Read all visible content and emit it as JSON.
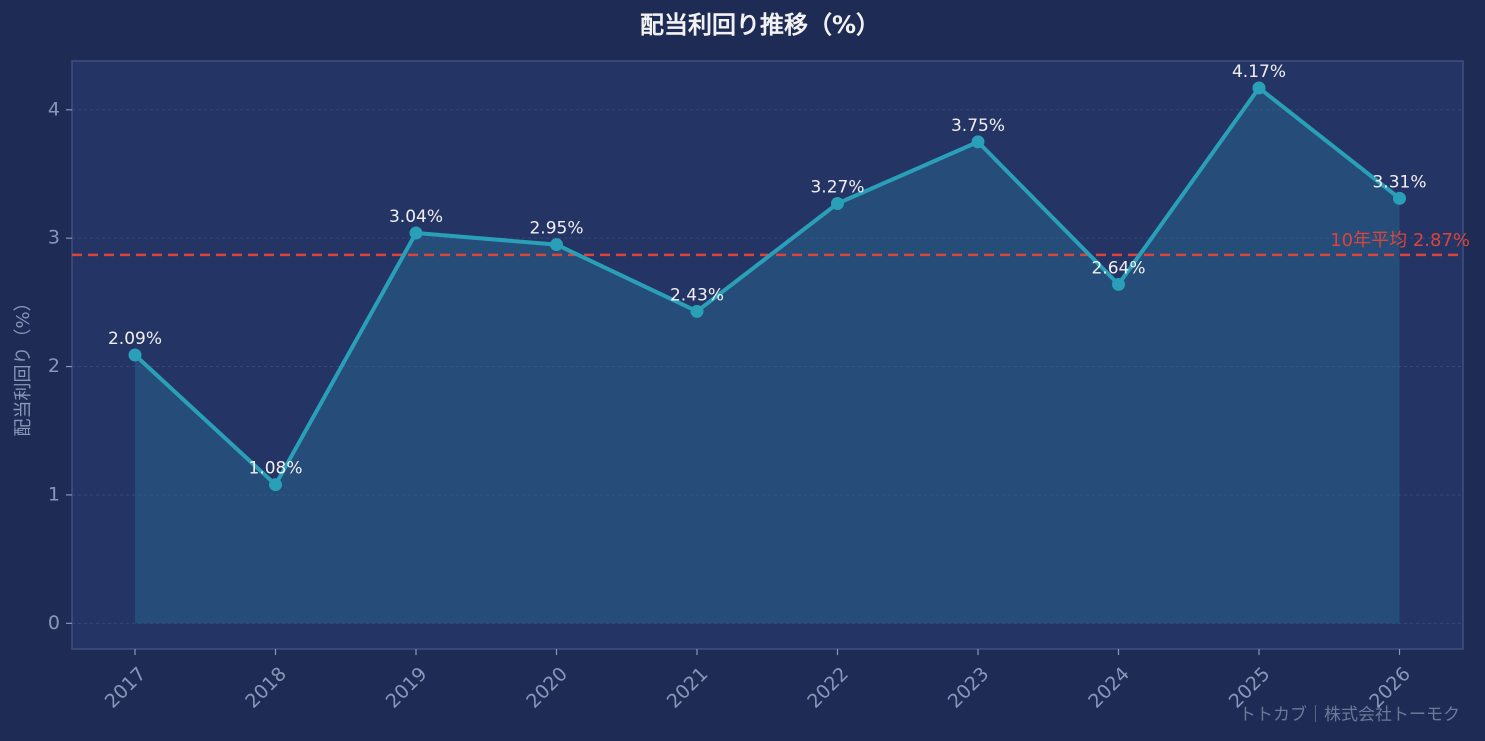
{
  "chart_data": {
    "type": "line",
    "title": "配当利回り推移（%）",
    "y_label": "配当利回り（%）",
    "categories": [
      "2017",
      "2018",
      "2019",
      "2020",
      "2021",
      "2022",
      "2023",
      "2024",
      "2025",
      "2026"
    ],
    "values": [
      2.09,
      1.08,
      3.04,
      2.95,
      2.43,
      3.27,
      3.75,
      2.64,
      4.17,
      3.31
    ],
    "value_labels": [
      "2.09%",
      "1.08%",
      "3.04%",
      "2.95%",
      "2.43%",
      "3.27%",
      "3.75%",
      "2.64%",
      "4.17%",
      "3.31%"
    ],
    "color": "#2a9fb8",
    "area": true,
    "ylim": [
      -0.2,
      4.38
    ],
    "yticks": [
      0,
      1,
      2,
      3,
      4
    ],
    "grid": true,
    "reference_line": {
      "value": 2.87,
      "label": "10年平均 2.87%",
      "color": "#d9453b"
    },
    "watermark": "トトカブ｜株式会社トーモク"
  }
}
